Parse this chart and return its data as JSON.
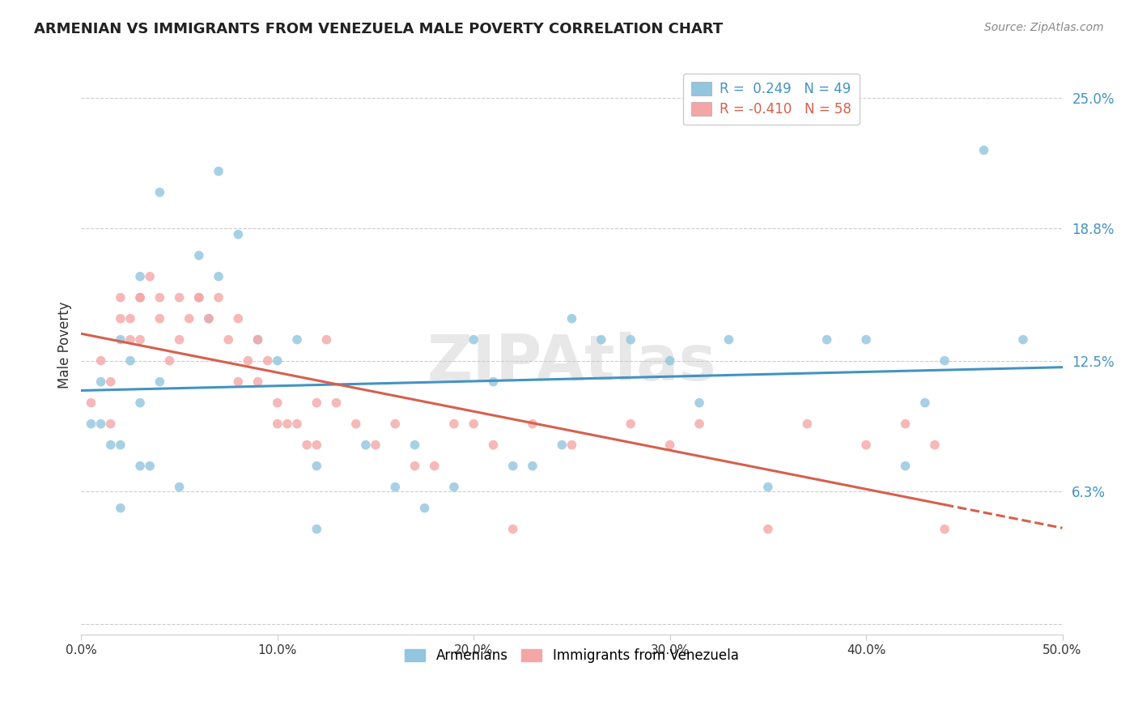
{
  "title": "ARMENIAN VS IMMIGRANTS FROM VENEZUELA MALE POVERTY CORRELATION CHART",
  "source": "Source: ZipAtlas.com",
  "ylabel": "Male Poverty",
  "yticks": [
    0.0,
    0.063,
    0.125,
    0.188,
    0.25
  ],
  "ytick_labels": [
    "",
    "6.3%",
    "12.5%",
    "18.8%",
    "25.0%"
  ],
  "xticks": [
    0.0,
    0.1,
    0.2,
    0.3,
    0.4,
    0.5
  ],
  "xtick_labels": [
    "0.0%",
    "10.0%",
    "20.0%",
    "30.0%",
    "40.0%",
    "50.0%"
  ],
  "xlim": [
    0.0,
    0.5
  ],
  "ylim": [
    -0.005,
    0.27
  ],
  "armenians_R": "0.249",
  "armenians_N": "49",
  "venezuela_R": "-0.410",
  "venezuela_N": "58",
  "blue_color": "#92c5de",
  "pink_color": "#f4a6a6",
  "blue_line_color": "#4393c3",
  "pink_line_color": "#d6604d",
  "watermark": "ZIPAtlas",
  "arm_x": [
    0.005,
    0.01,
    0.015,
    0.02,
    0.025,
    0.03,
    0.035,
    0.01,
    0.02,
    0.02,
    0.03,
    0.04,
    0.05,
    0.03,
    0.04,
    0.06,
    0.07,
    0.08,
    0.065,
    0.09,
    0.1,
    0.11,
    0.12,
    0.145,
    0.16,
    0.17,
    0.175,
    0.19,
    0.2,
    0.21,
    0.22,
    0.23,
    0.245,
    0.25,
    0.265,
    0.28,
    0.3,
    0.315,
    0.33,
    0.35,
    0.38,
    0.4,
    0.42,
    0.44,
    0.46,
    0.48,
    0.43,
    0.12,
    0.07
  ],
  "arm_y": [
    0.095,
    0.115,
    0.085,
    0.055,
    0.125,
    0.105,
    0.075,
    0.095,
    0.135,
    0.085,
    0.165,
    0.115,
    0.065,
    0.075,
    0.205,
    0.175,
    0.165,
    0.185,
    0.145,
    0.135,
    0.125,
    0.135,
    0.075,
    0.085,
    0.065,
    0.085,
    0.055,
    0.065,
    0.135,
    0.115,
    0.075,
    0.075,
    0.085,
    0.145,
    0.135,
    0.135,
    0.125,
    0.105,
    0.135,
    0.065,
    0.135,
    0.135,
    0.075,
    0.125,
    0.225,
    0.135,
    0.105,
    0.045,
    0.215
  ],
  "ven_x": [
    0.005,
    0.01,
    0.015,
    0.015,
    0.02,
    0.025,
    0.03,
    0.025,
    0.035,
    0.03,
    0.04,
    0.04,
    0.045,
    0.05,
    0.05,
    0.055,
    0.06,
    0.065,
    0.07,
    0.075,
    0.08,
    0.08,
    0.085,
    0.09,
    0.09,
    0.095,
    0.1,
    0.1,
    0.105,
    0.11,
    0.115,
    0.12,
    0.12,
    0.125,
    0.13,
    0.14,
    0.15,
    0.16,
    0.17,
    0.18,
    0.19,
    0.2,
    0.21,
    0.22,
    0.23,
    0.25,
    0.28,
    0.3,
    0.315,
    0.35,
    0.37,
    0.4,
    0.42,
    0.435,
    0.44,
    0.02,
    0.03,
    0.06
  ],
  "ven_y": [
    0.105,
    0.125,
    0.095,
    0.115,
    0.145,
    0.135,
    0.155,
    0.145,
    0.165,
    0.135,
    0.155,
    0.145,
    0.125,
    0.155,
    0.135,
    0.145,
    0.155,
    0.145,
    0.155,
    0.135,
    0.115,
    0.145,
    0.125,
    0.135,
    0.115,
    0.125,
    0.095,
    0.105,
    0.095,
    0.095,
    0.085,
    0.105,
    0.085,
    0.135,
    0.105,
    0.095,
    0.085,
    0.095,
    0.075,
    0.075,
    0.095,
    0.095,
    0.085,
    0.045,
    0.095,
    0.085,
    0.095,
    0.085,
    0.095,
    0.045,
    0.095,
    0.085,
    0.095,
    0.085,
    0.045,
    0.155,
    0.155,
    0.155
  ]
}
